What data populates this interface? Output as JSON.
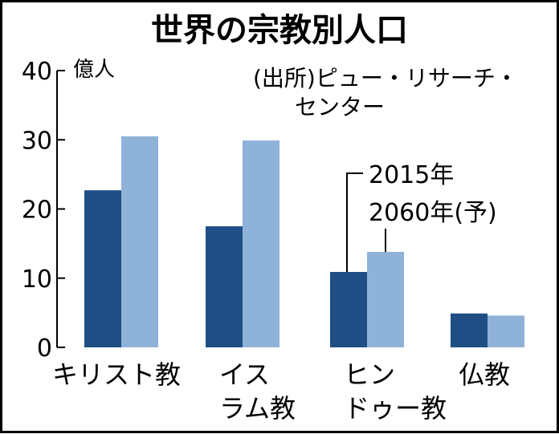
{
  "chart_data": {
    "type": "bar",
    "title": "世界の宗教別人口",
    "unit_label": "億人",
    "source": [
      "(出所)ピュー・リサーチ・",
      "センター"
    ],
    "ylim": [
      0,
      40
    ],
    "yticks": [
      "0",
      "10",
      "20",
      "30",
      "40"
    ],
    "categories": [
      [
        "キリスト教"
      ],
      [
        "イス",
        "ラム教"
      ],
      [
        "ヒン",
        "ドゥー教"
      ],
      [
        "仏教"
      ]
    ],
    "series": [
      {
        "name": "2015年",
        "color": "#1f4e85",
        "values": [
          22.7,
          17.5,
          10.9,
          4.9
        ]
      },
      {
        "name": "2060年(予)",
        "color": "#8fb2d9",
        "values": [
          30.5,
          29.9,
          13.8,
          4.6
        ]
      }
    ],
    "legend_placement": "annotation"
  }
}
